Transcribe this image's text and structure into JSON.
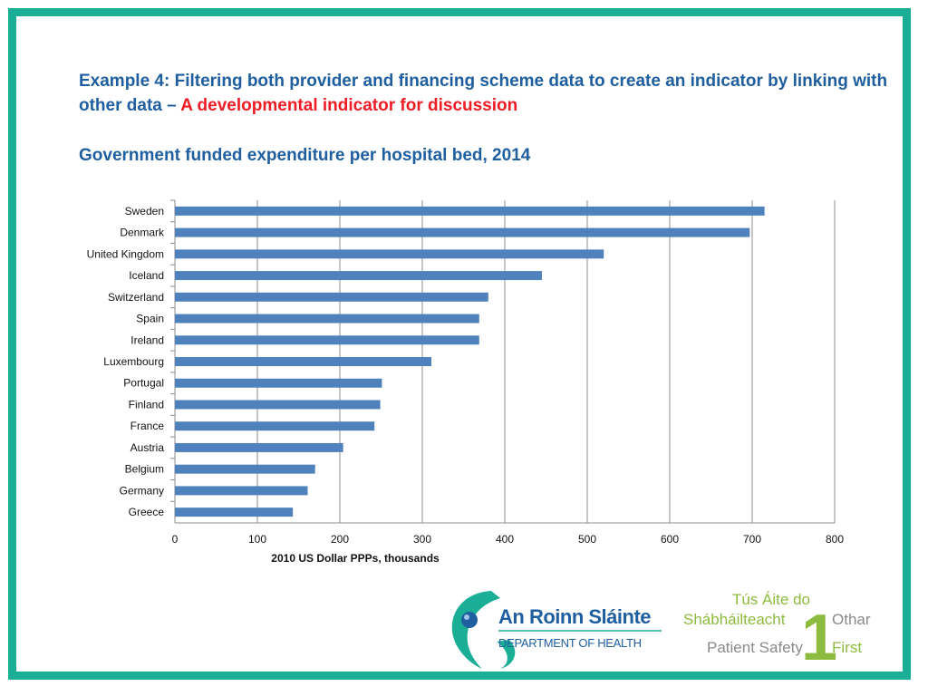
{
  "slide": {
    "heading_main": "Example 4: Filtering both provider and financing scheme data to create an indicator by linking with other data – ",
    "heading_accent": "A developmental indicator for discussion",
    "subtitle": "Government funded expenditure per hospital bed, 2014"
  },
  "colors": {
    "frame": "#1aae96",
    "heading": "#1f5fa0",
    "accent": "#ee1c25",
    "bar": "#4f81bd"
  },
  "chart_data": {
    "type": "bar",
    "orientation": "horizontal",
    "categories": [
      "Sweden",
      "Denmark",
      "United Kingdom",
      "Iceland",
      "Switzerland",
      "Spain",
      "Ireland",
      "Luxembourg",
      "Portugal",
      "Finland",
      "France",
      "Austria",
      "Belgium",
      "Germany",
      "Greece"
    ],
    "values": [
      715,
      697,
      520,
      445,
      380,
      369,
      369,
      311,
      251,
      249,
      242,
      204,
      170,
      161,
      143
    ],
    "xlabel": "2010 US Dollar PPPs, thousands",
    "xlim": [
      0,
      800
    ],
    "xticks": [
      0,
      100,
      200,
      300,
      400,
      500,
      600,
      700,
      800
    ],
    "grid": "vertical"
  },
  "logos": {
    "doh_line1": "An Roinn Sláinte",
    "doh_line2": "DEPARTMENT OF HEALTH",
    "psf_line1": "Tús Áite do",
    "psf_line2": "Shábháilteacht",
    "psf_line3": "Othar",
    "psf_line4": "Patient Safety",
    "psf_line5": "First",
    "psf_numeral": "1"
  }
}
